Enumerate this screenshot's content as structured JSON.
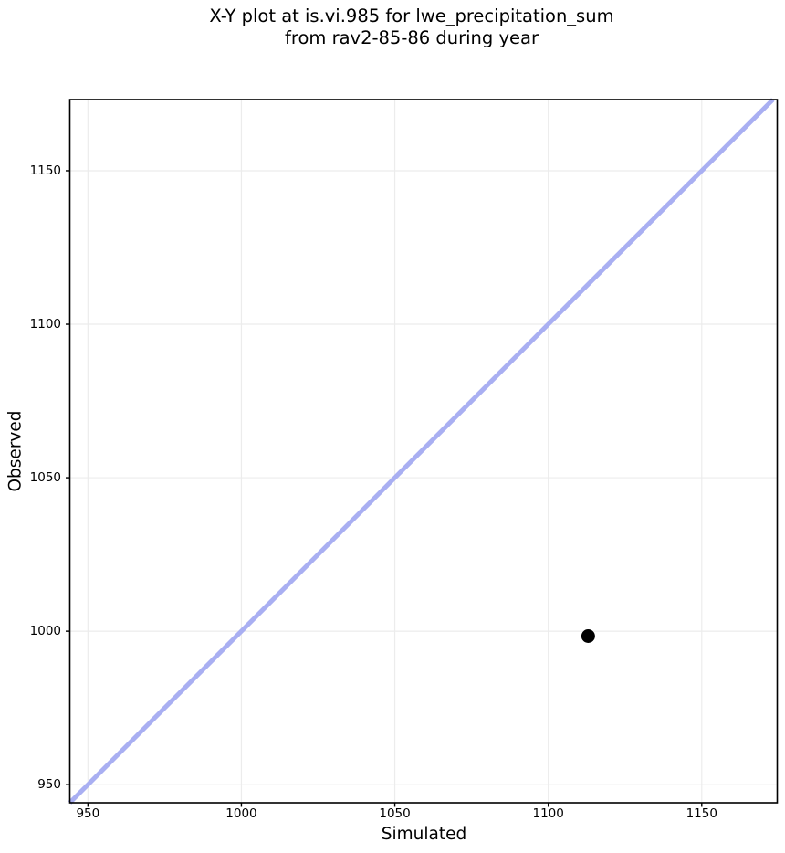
{
  "chart_data": {
    "type": "scatter",
    "title_lines": [
      "X-Y plot at is.vi.985 for lwe_precipitation_sum",
      "from rav2-85-86 during year"
    ],
    "xlabel": "Simulated",
    "ylabel": "Observed",
    "xlim": [
      944.1,
      1174.6
    ],
    "ylim": [
      944.1,
      1173.2
    ],
    "xticks": [
      950,
      1000,
      1050,
      1100,
      1150
    ],
    "yticks": [
      950,
      1000,
      1050,
      1100,
      1150
    ],
    "grid": true,
    "legend": false,
    "identity_line": true,
    "points": [
      {
        "x": 1113,
        "y": 998.4
      }
    ],
    "colors": {
      "point": "#000000",
      "identity_line": "#a9aff2",
      "grid": "#ececec",
      "spine": "#000000",
      "text": "#000000",
      "background": "#ffffff"
    }
  }
}
